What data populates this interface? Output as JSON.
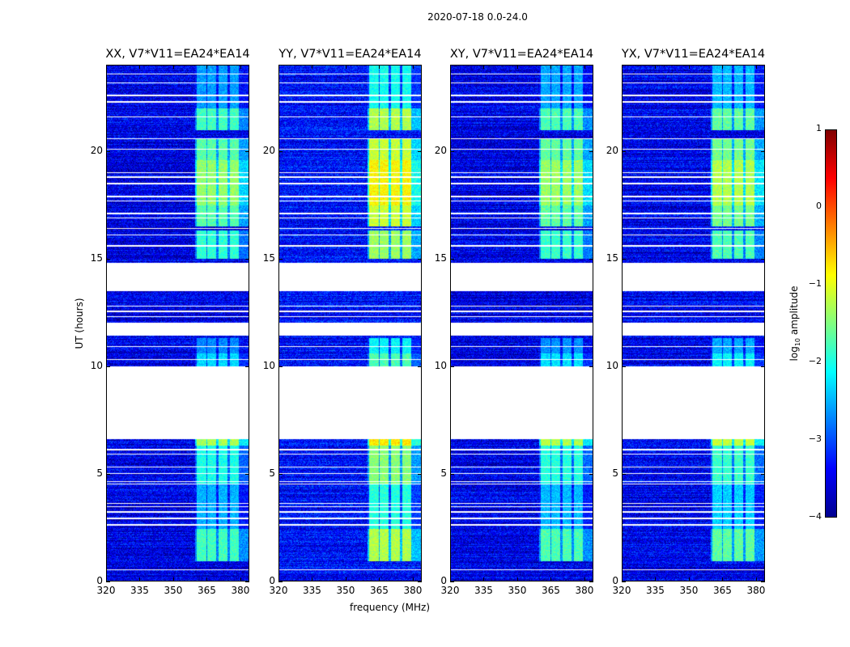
{
  "figure": {
    "suptitle": "2020-07-18 0.0-24.0",
    "ylabel": "UT (hours)",
    "xlabel": "frequency (MHz)",
    "colorbar_label": "log",
    "colorbar_sub": "10",
    "colorbar_label_rest": " amplitude"
  },
  "chart_data": {
    "type": "heatmap",
    "panels": [
      {
        "title": "XX, V7*V11=EA24*EA14",
        "boost": 0
      },
      {
        "title": "YY, V7*V11=EA24*EA14",
        "boost": 0.55
      },
      {
        "title": "XY, V7*V11=EA24*EA14",
        "boost": 0.05
      },
      {
        "title": "YX, V7*V11=EA24*EA14",
        "boost": 0.15
      }
    ],
    "xlim": [
      320,
      384
    ],
    "ylim": [
      0,
      24
    ],
    "xticks": [
      "320",
      "335",
      "350",
      "365",
      "380"
    ],
    "xtick_values": [
      320,
      335,
      350,
      365,
      380
    ],
    "yticks": [
      "0",
      "5",
      "10",
      "15",
      "20"
    ],
    "ytick_values": [
      0,
      5,
      10,
      15,
      20
    ],
    "colorbar": {
      "cmap": "jet",
      "range": [
        -4,
        1
      ],
      "ticks": [
        "1",
        "0",
        "−1",
        "−2",
        "−3",
        "−4"
      ],
      "tick_values": [
        1,
        0,
        -1,
        -2,
        -3,
        -4
      ]
    },
    "background_level": -3.5,
    "active_channels_mhz": [
      [
        360.5,
        365
      ],
      [
        365.5,
        369.5
      ],
      [
        370.6,
        374.6
      ],
      [
        375.6,
        379.6
      ]
    ],
    "activity": [
      {
        "from": 0.9,
        "to": 2.4,
        "level": -1.8
      },
      {
        "from": 2.4,
        "to": 4.5,
        "level": -2.5
      },
      {
        "from": 4.5,
        "to": 6.3,
        "level": -2.0
      },
      {
        "from": 6.3,
        "to": 6.6,
        "level": -1.3
      },
      {
        "from": 10.0,
        "to": 10.6,
        "level": -2.3
      },
      {
        "from": 10.6,
        "to": 11.3,
        "level": -2.7
      },
      {
        "from": 15.0,
        "to": 16.3,
        "level": -1.9
      },
      {
        "from": 16.5,
        "to": 17.5,
        "level": -1.7
      },
      {
        "from": 17.5,
        "to": 19.6,
        "level": -1.4
      },
      {
        "from": 19.6,
        "to": 20.6,
        "level": -1.7
      },
      {
        "from": 21.0,
        "to": 22.0,
        "level": -1.8
      },
      {
        "from": 22.0,
        "to": 24.0,
        "level": -2.6
      }
    ],
    "flagged_hours": [
      [
        6.6,
        9.9
      ],
      [
        11.4,
        12.0
      ],
      [
        13.5,
        14.8
      ]
    ],
    "flagged_lines": [
      0.5,
      2.6,
      2.9,
      3.2,
      3.45,
      3.6,
      4.5,
      4.62,
      5.0,
      5.3,
      5.9,
      6.1,
      9.95,
      10.3,
      10.9,
      12.3,
      12.55,
      12.8,
      15.6,
      16.1,
      16.4,
      16.9,
      17.1,
      17.7,
      17.9,
      18.5,
      18.8,
      19.0,
      20.1,
      20.6,
      21.6,
      22.3,
      22.6,
      23.2,
      23.6
    ]
  }
}
